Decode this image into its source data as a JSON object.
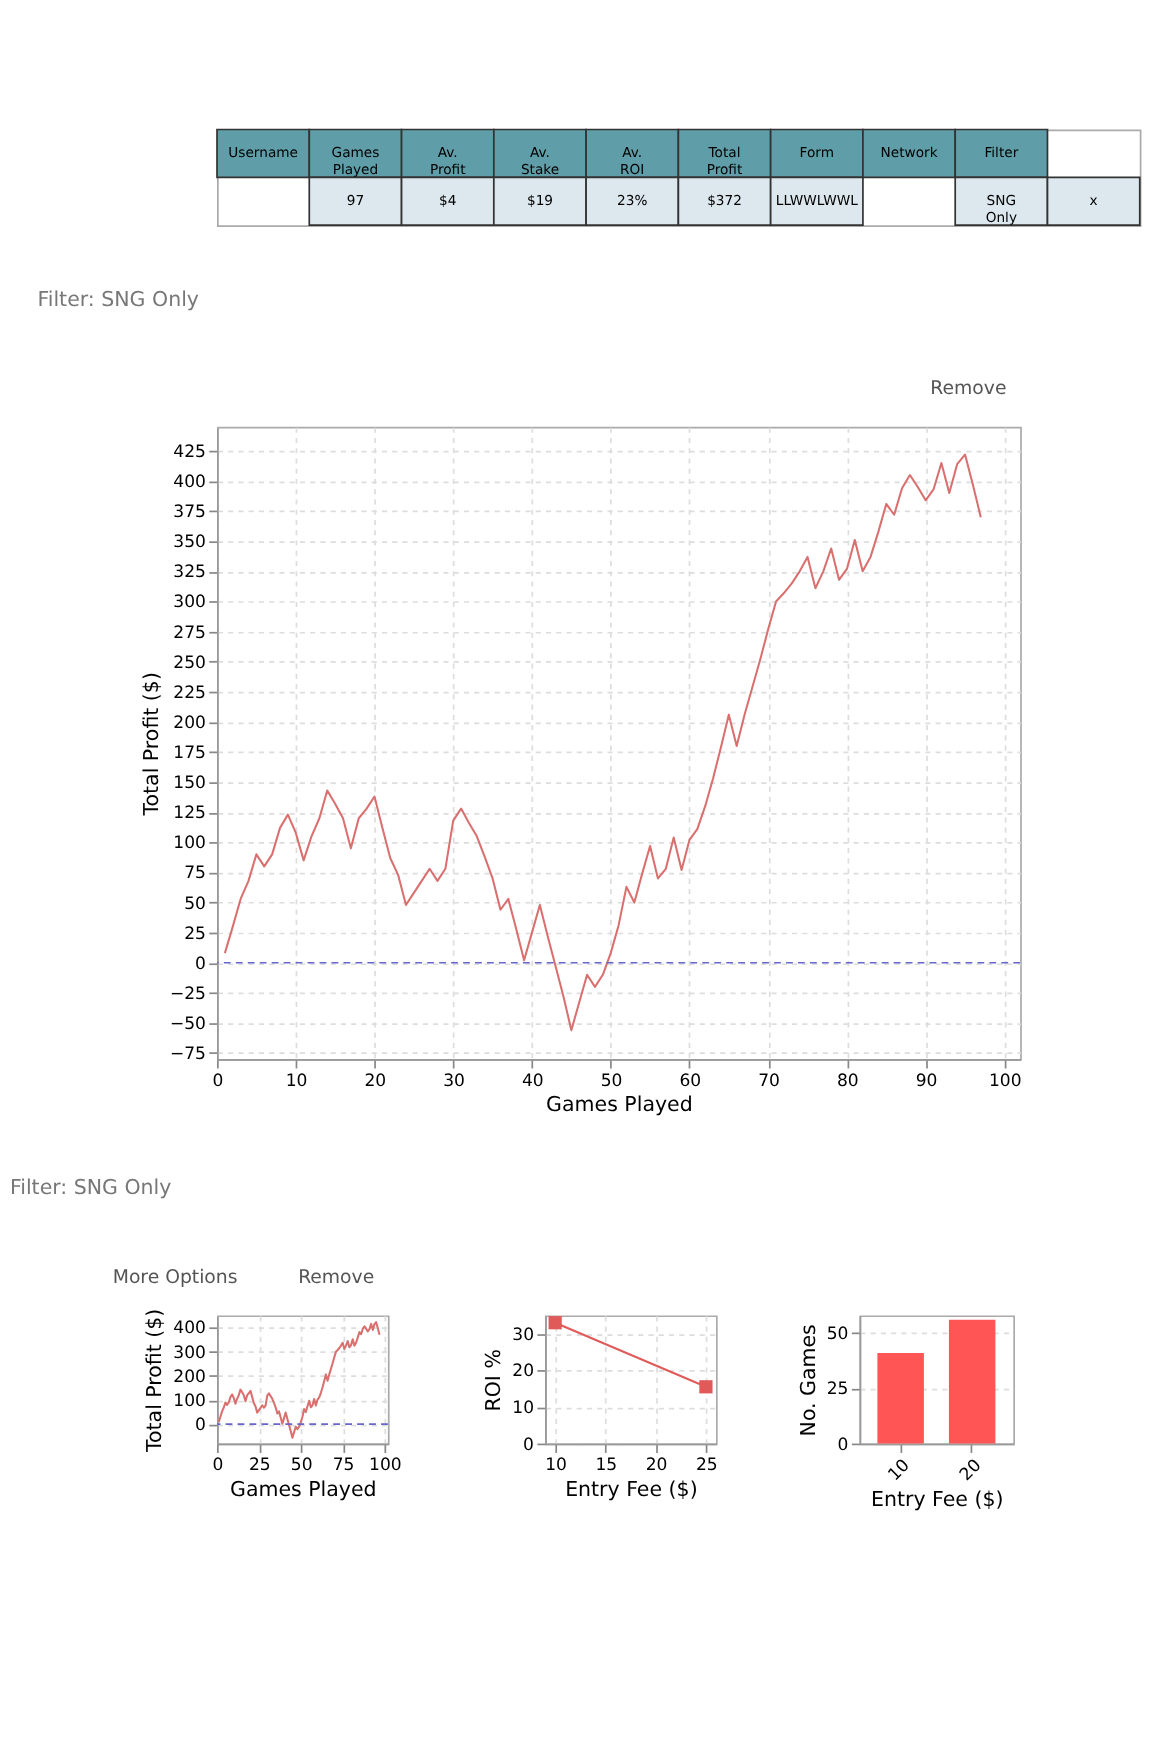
{
  "chart_data": [
    {
      "type": "other",
      "categories": [
        "Username",
        "Games Played",
        "Av. Profit",
        "Av. Stake",
        "Av. ROI",
        "Total Profit",
        "Form",
        "Network",
        "Filter",
        null
      ],
      "value_labels": [
        null,
        "97",
        "$4",
        "$19",
        "23%",
        "$372",
        "LLWWLWWL",
        null,
        "SNG Only",
        "x"
      ]
    },
    {
      "type": "line",
      "subtitle": "Filter: SNG Only",
      "annotations": [
        "Remove"
      ],
      "xlabel": "Games Played",
      "ylabel": "Total Profit ($)",
      "x": [
        1,
        2,
        3,
        4,
        5,
        6,
        7,
        8,
        9,
        10,
        11,
        12,
        13,
        14,
        15,
        16,
        17,
        18,
        19,
        20,
        21,
        22,
        23,
        24,
        25,
        26,
        27,
        28,
        29,
        30,
        31,
        32,
        33,
        34,
        35,
        36,
        37,
        38,
        39,
        40,
        41,
        42,
        43,
        44,
        45,
        46,
        47,
        48,
        49,
        50,
        51,
        52,
        53,
        54,
        55,
        56,
        57,
        58,
        59,
        60,
        61,
        62,
        63,
        64,
        65,
        66,
        67,
        68,
        69,
        70,
        71,
        72,
        73,
        74,
        75,
        76,
        77,
        78,
        79,
        80,
        81,
        82,
        83,
        84,
        85,
        86,
        87,
        88,
        89,
        90,
        91,
        92,
        93,
        94,
        95,
        96,
        97
      ],
      "series": [
        {
          "color": "#d9706f",
          "values": [
            8,
            30,
            53,
            68,
            90,
            80,
            90,
            112,
            123,
            108,
            85,
            105,
            120,
            143,
            132,
            120,
            95,
            120,
            128,
            138,
            112,
            87,
            73,
            48,
            58,
            68,
            78,
            68,
            78,
            118,
            128,
            116,
            105,
            88,
            70,
            44,
            53,
            28,
            2,
            25,
            48,
            22,
            -3,
            -28,
            -56,
            -33,
            -10,
            -20,
            -10,
            8,
            31,
            63,
            50,
            74,
            97,
            70,
            78,
            104,
            77,
            102,
            111,
            130,
            153,
            179,
            206,
            180,
            206,
            229,
            252,
            277,
            300,
            307,
            315,
            325,
            337,
            311,
            325,
            344,
            318,
            327,
            351,
            325,
            337,
            358,
            381,
            372,
            394,
            405,
            395,
            384,
            393,
            415,
            390,
            414,
            422,
            397,
            370
          ]
        }
      ],
      "xlim": [
        0,
        102
      ],
      "ylim": [
        -80,
        445
      ],
      "xticks": [
        0,
        10,
        20,
        30,
        40,
        50,
        60,
        70,
        80,
        90,
        100
      ],
      "yticks": [
        -75,
        -50,
        -25,
        0,
        25,
        50,
        75,
        100,
        125,
        150,
        175,
        200,
        225,
        250,
        275,
        300,
        325,
        350,
        375,
        400,
        425
      ],
      "ref_lines": [
        {
          "axis": "y",
          "value": 0,
          "color": "#6666cc",
          "line_style": "dashed"
        }
      ],
      "grid": true
    },
    {
      "type": "line",
      "subtitle": "Filter: SNG Only",
      "annotations": [
        "More Options",
        "Remove"
      ],
      "xlabel": "Games Played",
      "ylabel": "Total Profit ($)",
      "x": [
        1,
        2,
        3,
        4,
        5,
        6,
        7,
        8,
        9,
        10,
        11,
        12,
        13,
        14,
        15,
        16,
        17,
        18,
        19,
        20,
        21,
        22,
        23,
        24,
        25,
        26,
        27,
        28,
        29,
        30,
        31,
        32,
        33,
        34,
        35,
        36,
        37,
        38,
        39,
        40,
        41,
        42,
        43,
        44,
        45,
        46,
        47,
        48,
        49,
        50,
        51,
        52,
        53,
        54,
        55,
        56,
        57,
        58,
        59,
        60,
        61,
        62,
        63,
        64,
        65,
        66,
        67,
        68,
        69,
        70,
        71,
        72,
        73,
        74,
        75,
        76,
        77,
        78,
        79,
        80,
        81,
        82,
        83,
        84,
        85,
        86,
        87,
        88,
        89,
        90,
        91,
        92,
        93,
        94,
        95,
        96,
        97
      ],
      "series": [
        {
          "color": "#d9706f",
          "values": [
            8,
            30,
            53,
            68,
            90,
            80,
            90,
            112,
            123,
            108,
            85,
            105,
            120,
            143,
            132,
            120,
            95,
            120,
            128,
            138,
            112,
            87,
            73,
            48,
            58,
            68,
            78,
            68,
            78,
            118,
            128,
            116,
            105,
            88,
            70,
            44,
            53,
            28,
            2,
            25,
            48,
            22,
            -3,
            -28,
            -56,
            -33,
            -10,
            -20,
            -10,
            8,
            31,
            63,
            50,
            74,
            97,
            70,
            78,
            104,
            77,
            102,
            111,
            130,
            153,
            179,
            206,
            180,
            206,
            229,
            252,
            277,
            300,
            307,
            315,
            325,
            337,
            311,
            325,
            344,
            318,
            327,
            351,
            325,
            337,
            358,
            381,
            372,
            394,
            405,
            395,
            384,
            393,
            415,
            390,
            414,
            422,
            397,
            370
          ]
        }
      ],
      "xlim": [
        0,
        102
      ],
      "ylim": [
        -80,
        450
      ],
      "xticks": [
        0,
        25,
        50,
        75,
        100
      ],
      "yticks": [
        0,
        100,
        200,
        300,
        400
      ],
      "ref_lines": [
        {
          "axis": "y",
          "value": 0,
          "color": "#6666cc",
          "line_style": "dashed"
        }
      ],
      "grid": true
    },
    {
      "type": "line",
      "xlabel": "Entry Fee ($)",
      "ylabel": "ROI %",
      "x": [
        10,
        25
      ],
      "series": [
        {
          "color": "#e05a5a",
          "values": [
            33,
            15.5
          ]
        }
      ],
      "marker": "square",
      "xlim": [
        9,
        26
      ],
      "ylim": [
        0,
        35
      ],
      "xticks": [
        10,
        15,
        20,
        25
      ],
      "yticks": [
        0,
        10,
        20,
        30
      ],
      "grid": true
    },
    {
      "type": "bar",
      "xlabel": "Entry Fee ($)",
      "ylabel": "No. Games",
      "categories": [
        "10",
        "20"
      ],
      "series": [
        {
          "color": "#ff5555",
          "values": [
            41,
            56
          ]
        }
      ],
      "ylim": [
        0,
        58
      ],
      "yticks": [
        0,
        25,
        50
      ],
      "grid": true
    }
  ]
}
